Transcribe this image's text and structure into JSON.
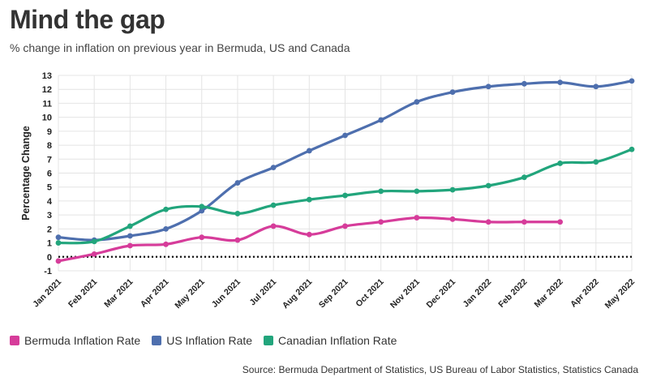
{
  "header": {
    "title": "Mind the gap",
    "subtitle": "% change in inflation on previous year in Bermuda, US and Canada"
  },
  "footer": {
    "source": "Source: Bermuda Department of Statistics, US Bureau of Labor Statistics, Statistics Canada"
  },
  "chart_data": {
    "type": "line",
    "title": "Mind the gap",
    "subtitle": "% change in inflation on previous year in Bermuda, US and Canada",
    "xlabel": "",
    "ylabel": "Percentage Change",
    "ylim": [
      -1,
      13
    ],
    "yticks": [
      -1,
      0,
      1,
      2,
      3,
      4,
      5,
      6,
      7,
      8,
      9,
      10,
      11,
      12,
      13
    ],
    "grid": true,
    "legend_position": "bottom-left",
    "reference_line": {
      "y": 0,
      "style": "dotted"
    },
    "categories": [
      "Jan 2021",
      "Feb 2021",
      "Mar 2021",
      "Apr 2021",
      "May 2021",
      "Jun 2021",
      "Jul 2021",
      "Aug 2021",
      "Sep 2021",
      "Oct 2021",
      "Nov 2021",
      "Dec 2021",
      "Jan 2022",
      "Feb 2022",
      "Mar 2022",
      "Apr 2022",
      "May 2022"
    ],
    "series": [
      {
        "name": "Bermuda Inflation Rate",
        "color": "#d63c9a",
        "values": [
          -0.3,
          0.2,
          0.8,
          0.9,
          1.4,
          1.2,
          2.2,
          1.6,
          2.2,
          2.5,
          2.8,
          2.7,
          2.5,
          2.5,
          2.5,
          null,
          null
        ]
      },
      {
        "name": "US Inflation Rate",
        "color": "#4e6fae",
        "values": [
          1.4,
          1.2,
          1.5,
          2.0,
          3.3,
          5.3,
          6.4,
          7.6,
          8.7,
          9.8,
          11.1,
          11.8,
          12.2,
          12.4,
          12.5,
          12.2,
          12.6
        ]
      },
      {
        "name": "Canadian Inflation Rate",
        "color": "#22a57c",
        "values": [
          1.0,
          1.1,
          2.2,
          3.4,
          3.6,
          3.1,
          3.7,
          4.1,
          4.4,
          4.7,
          4.7,
          4.8,
          5.1,
          5.7,
          6.7,
          6.8,
          7.7
        ]
      }
    ]
  }
}
